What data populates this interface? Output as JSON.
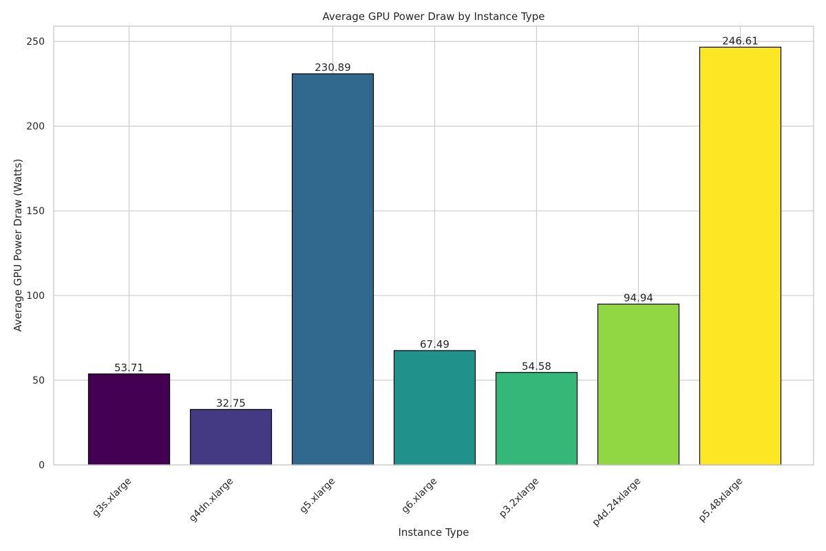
{
  "chart_data": {
    "type": "bar",
    "title": "Average GPU Power Draw by Instance Type",
    "xlabel": "Instance Type",
    "ylabel": "Average GPU Power Draw (Watts)",
    "categories": [
      "g3s.xlarge",
      "g4dn.xlarge",
      "g5.xlarge",
      "g6.xlarge",
      "p3.2xlarge",
      "p4d.24xlarge",
      "p5.48xlarge"
    ],
    "values": [
      53.71,
      32.75,
      230.89,
      67.49,
      54.58,
      94.94,
      246.61
    ],
    "data_labels": [
      "53.71",
      "32.75",
      "230.89",
      "67.49",
      "54.58",
      "94.94",
      "246.61"
    ],
    "colors": [
      "#440154",
      "#443983",
      "#31688e",
      "#21918c",
      "#35b779",
      "#90d743",
      "#fde725"
    ],
    "ylim": [
      0,
      259
    ],
    "yticks": [
      0,
      50,
      100,
      150,
      200,
      250
    ],
    "ytick_labels": [
      "0",
      "50",
      "100",
      "150",
      "200",
      "250"
    ],
    "grid": true,
    "x_tick_rotation": 45
  }
}
